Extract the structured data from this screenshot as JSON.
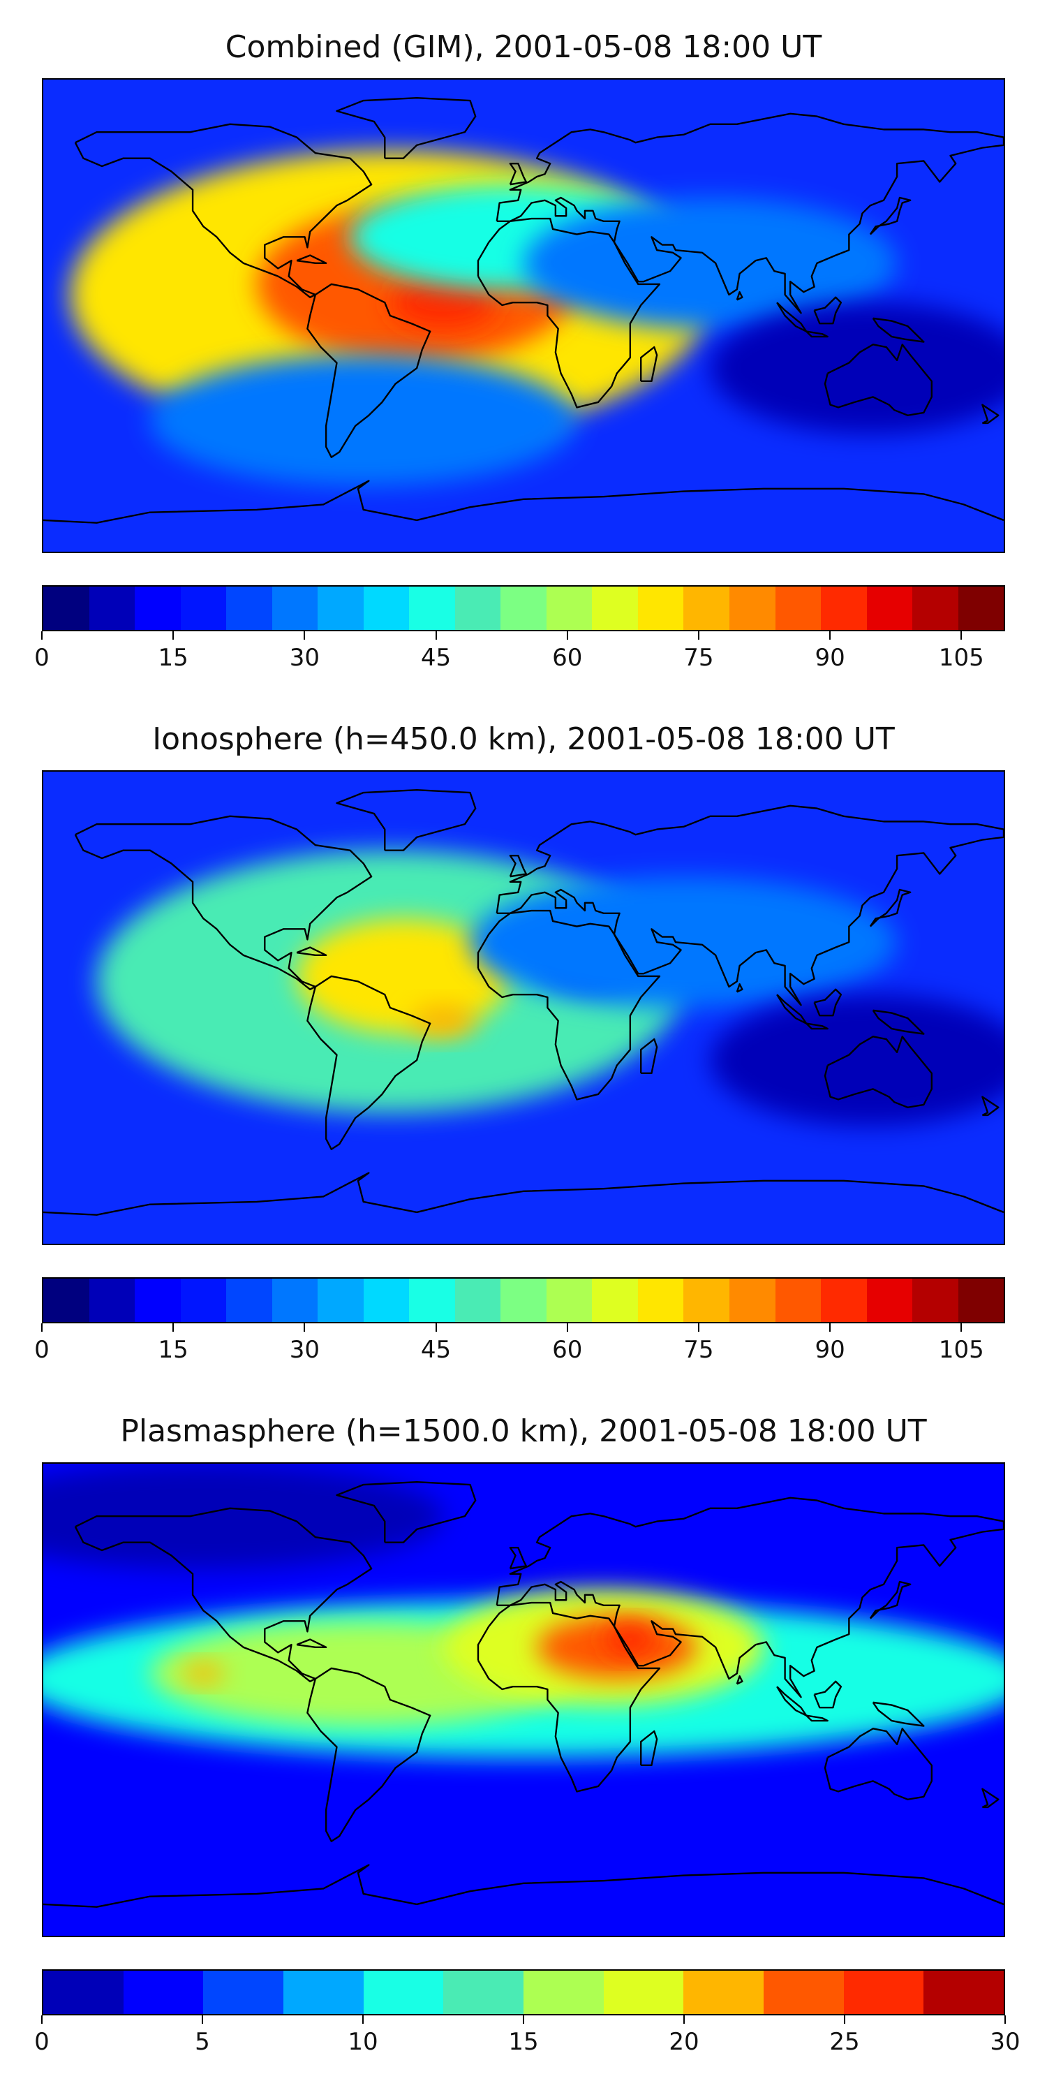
{
  "maps": [
    {
      "title": "Combined (GIM), 2001-05-08 18:00 UT",
      "colorbar": {
        "colors": [
          "#00007f",
          "#0000b8",
          "#0000ff",
          "#0015ff",
          "#0046ff",
          "#0077ff",
          "#00a8ff",
          "#00d9ff",
          "#19ffe5",
          "#4aebb4",
          "#7cff83",
          "#adff52",
          "#deff21",
          "#ffe600",
          "#ffb600",
          "#ff8a00",
          "#ff5800",
          "#ff2a00",
          "#e60000",
          "#b40000",
          "#7f0000"
        ],
        "ticks": [
          "0",
          "15",
          "30",
          "45",
          "60",
          "75",
          "90",
          "105"
        ],
        "tick_values": [
          0,
          15,
          30,
          45,
          60,
          75,
          90,
          105
        ],
        "range": [
          0,
          110
        ]
      },
      "field": {
        "background": "#0a2cff",
        "blobs": [
          {
            "lon": -50,
            "lat": 8,
            "level": 70,
            "rx_deg": 120,
            "ry_deg": 55
          },
          {
            "lon": -40,
            "lat": 12,
            "level": 85,
            "rx_deg": 60,
            "ry_deg": 30
          },
          {
            "lon": -30,
            "lat": 5,
            "level": 90,
            "rx_deg": 20,
            "ry_deg": 10
          },
          {
            "lon": -5,
            "lat": 30,
            "level": 45,
            "rx_deg": 60,
            "ry_deg": 20
          },
          {
            "lon": 70,
            "lat": 20,
            "level": 30,
            "rx_deg": 70,
            "ry_deg": 25
          },
          {
            "lon": -60,
            "lat": -40,
            "level": 30,
            "rx_deg": 80,
            "ry_deg": 25
          },
          {
            "lon": 130,
            "lat": -20,
            "level": 10,
            "rx_deg": 60,
            "ry_deg": 25
          }
        ]
      }
    },
    {
      "title": "Ionosphere  (h=450.0 km), 2001-05-08 18:00 UT",
      "colorbar": {
        "colors": [
          "#00007f",
          "#0000b8",
          "#0000ff",
          "#0015ff",
          "#0046ff",
          "#0077ff",
          "#00a8ff",
          "#00d9ff",
          "#19ffe5",
          "#4aebb4",
          "#7cff83",
          "#adff52",
          "#deff21",
          "#ffe600",
          "#ffb600",
          "#ff8a00",
          "#ff5800",
          "#ff2a00",
          "#e60000",
          "#b40000",
          "#7f0000"
        ],
        "ticks": [
          "0",
          "15",
          "30",
          "45",
          "60",
          "75",
          "90",
          "105"
        ],
        "tick_values": [
          0,
          15,
          30,
          45,
          60,
          75,
          90,
          105
        ],
        "range": [
          0,
          110
        ]
      },
      "field": {
        "background": "#0a2cff",
        "blobs": [
          {
            "lon": -50,
            "lat": 10,
            "level": 50,
            "rx_deg": 110,
            "ry_deg": 50
          },
          {
            "lon": -45,
            "lat": 12,
            "level": 70,
            "rx_deg": 40,
            "ry_deg": 22
          },
          {
            "lon": -30,
            "lat": -5,
            "level": 78,
            "rx_deg": 12,
            "ry_deg": 6
          },
          {
            "lon": 25,
            "lat": 20,
            "level": 20,
            "rx_deg": 20,
            "ry_deg": 12
          },
          {
            "lon": 60,
            "lat": 25,
            "level": 30,
            "rx_deg": 80,
            "ry_deg": 25
          },
          {
            "lon": 130,
            "lat": -20,
            "level": 8,
            "rx_deg": 60,
            "ry_deg": 25
          }
        ]
      }
    },
    {
      "title": "Plasmasphere (h=1500.0 km), 2001-05-08 18:00 UT",
      "colorbar": {
        "colors": [
          "#0000b8",
          "#0000ff",
          "#0046ff",
          "#00a8ff",
          "#19ffe5",
          "#4aebb4",
          "#adff52",
          "#deff21",
          "#ffb600",
          "#ff5800",
          "#ff2a00",
          "#b40000"
        ],
        "ticks": [
          "0",
          "5",
          "10",
          "15",
          "20",
          "25",
          "30"
        ],
        "tick_values": [
          0,
          5,
          10,
          15,
          20,
          25,
          30
        ],
        "range": [
          0,
          30
        ]
      },
      "field": {
        "background": "#0000ff",
        "blobs": [
          {
            "lon": -120,
            "lat": 70,
            "level": 2,
            "rx_deg": 90,
            "ry_deg": 20
          },
          {
            "lon": 0,
            "lat": 8,
            "level": 12,
            "rx_deg": 190,
            "ry_deg": 30
          },
          {
            "lon": -60,
            "lat": 10,
            "level": 17,
            "rx_deg": 80,
            "ry_deg": 20
          },
          {
            "lon": 30,
            "lat": 20,
            "level": 19,
            "rx_deg": 60,
            "ry_deg": 22
          },
          {
            "lon": 35,
            "lat": 20,
            "level": 23,
            "rx_deg": 30,
            "ry_deg": 12
          },
          {
            "lon": 40,
            "lat": 23,
            "level": 26,
            "rx_deg": 10,
            "ry_deg": 6
          },
          {
            "lon": -120,
            "lat": 10,
            "level": 22,
            "rx_deg": 8,
            "ry_deg": 4
          },
          {
            "lon": 0,
            "lat": -70,
            "level": 3,
            "rx_deg": 180,
            "ry_deg": 20
          }
        ]
      }
    }
  ]
}
